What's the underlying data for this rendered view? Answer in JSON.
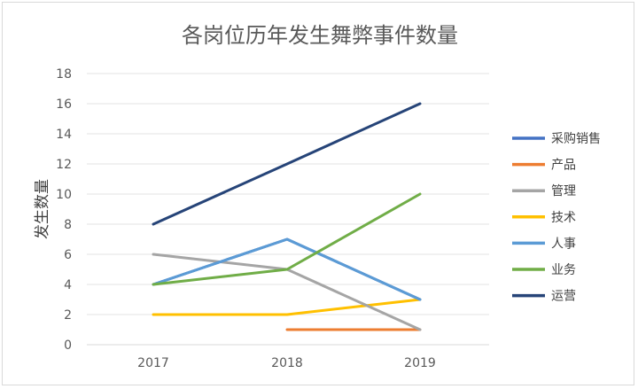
{
  "chart_data": {
    "type": "line",
    "title": "各岗位历年发生舞弊事件数量",
    "xlabel": "",
    "ylabel": "发生数量",
    "x": [
      "2017",
      "2018",
      "2019"
    ],
    "ylim": [
      0,
      18
    ],
    "yticks": [
      "0",
      "2",
      "4",
      "6",
      "8",
      "10",
      "12",
      "14",
      "16",
      "18"
    ],
    "grid": true,
    "legend_position": "right",
    "series": [
      {
        "name": "采购销售",
        "color": "#4472C4",
        "values": [
          4,
          7,
          3
        ]
      },
      {
        "name": "产品",
        "color": "#ED7D31",
        "values": [
          null,
          1,
          1
        ]
      },
      {
        "name": "管理",
        "color": "#A5A5A5",
        "values": [
          6,
          5,
          1
        ]
      },
      {
        "name": "技术",
        "color": "#FFC000",
        "values": [
          2,
          2,
          3
        ]
      },
      {
        "name": "人事",
        "color": "#5B9BD5",
        "values": [
          4,
          7,
          3
        ]
      },
      {
        "name": "业务",
        "color": "#70AD47",
        "values": [
          4,
          5,
          10
        ]
      },
      {
        "name": "运营",
        "color": "#264478",
        "values": [
          8,
          12,
          16
        ]
      }
    ]
  }
}
